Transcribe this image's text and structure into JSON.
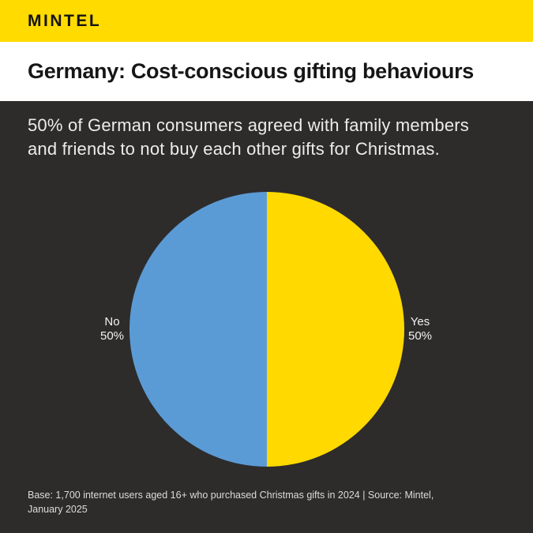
{
  "header": {
    "logo": "MINTEL"
  },
  "title_bar": {
    "title": "Germany: Cost-conscious gifting behaviours"
  },
  "main": {
    "subtitle_lines": [
      "50% of German consumers agreed with family members",
      "and friends to not buy each other gifts for Christmas."
    ],
    "footnote_lines": [
      "Base: 1,700 internet users aged 16+ who purchased Christmas gifts in 2024 | Source: Mintel,",
      "January 2025"
    ]
  },
  "colors": {
    "header_yellow": "#FFDB00",
    "panel_dark": "#2D2C2B",
    "pie_yes_yellow": "#FFD900",
    "pie_no_blue": "#5B9BD5"
  },
  "chart_data": {
    "type": "pie",
    "title": "Germany: Cost-conscious gifting behaviours",
    "subtitle": "50% of German consumers agreed with family members and friends to not buy each other gifts for Christmas.",
    "slices": [
      {
        "label": "Yes",
        "value": 50,
        "pct_label": "50%",
        "color": "#FFD900",
        "side": "right"
      },
      {
        "label": "No",
        "value": 50,
        "pct_label": "50%",
        "color": "#5B9BD5",
        "side": "left"
      }
    ],
    "legend": "none",
    "base_note": "Base: 1,700 internet users aged 16+ who purchased Christmas gifts in 2024 | Source: Mintel, January 2025"
  }
}
